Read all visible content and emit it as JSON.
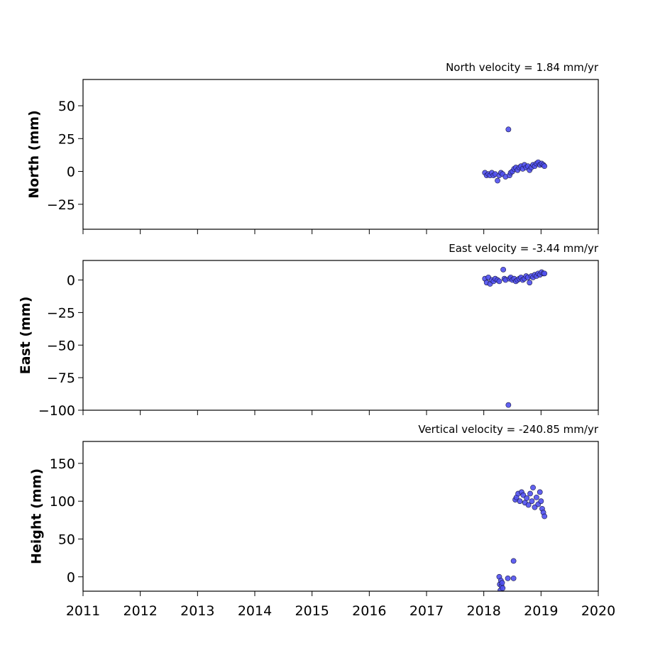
{
  "chart_data": [
    {
      "type": "scatter",
      "title": "North velocity = 1.84 mm/yr",
      "ylabel": "North (mm)",
      "x": [
        2018.02,
        2018.05,
        2018.08,
        2018.11,
        2018.14,
        2018.17,
        2018.2,
        2018.24,
        2018.27,
        2018.3,
        2018.33,
        2018.38,
        2018.43,
        2018.45,
        2018.47,
        2018.5,
        2018.53,
        2018.56,
        2018.59,
        2018.62,
        2018.65,
        2018.68,
        2018.71,
        2018.74,
        2018.77,
        2018.8,
        2018.83,
        2018.86,
        2018.89,
        2018.92,
        2018.95,
        2018.98,
        2019.01,
        2019.04,
        2019.06
      ],
      "values": [
        -1,
        -3,
        -2,
        -3,
        -1,
        -3,
        -2,
        -7,
        -3,
        -1,
        -2,
        -4,
        32,
        -3,
        -1,
        0,
        2,
        3,
        1,
        3,
        4,
        2,
        5,
        3,
        4,
        1,
        3,
        5,
        4,
        6,
        7,
        5,
        6,
        5,
        4
      ],
      "color": "#5050f0",
      "xlim": [
        2011,
        2020
      ],
      "xticks": [
        2011,
        2012,
        2013,
        2014,
        2015,
        2016,
        2017,
        2018,
        2019,
        2020
      ],
      "ylim": [
        -44,
        70
      ],
      "yticks": [
        {
          "value": -25,
          "label": "−25"
        },
        0,
        25,
        50
      ]
    },
    {
      "type": "scatter",
      "title": "East velocity = -3.44 mm/yr",
      "ylabel": "East (mm)",
      "x": [
        2018.02,
        2018.05,
        2018.08,
        2018.11,
        2018.14,
        2018.17,
        2018.2,
        2018.24,
        2018.27,
        2018.34,
        2018.36,
        2018.38,
        2018.43,
        2018.45,
        2018.47,
        2018.5,
        2018.53,
        2018.56,
        2018.59,
        2018.62,
        2018.65,
        2018.68,
        2018.71,
        2018.74,
        2018.77,
        2018.8,
        2018.83,
        2018.86,
        2018.89,
        2018.92,
        2018.95,
        2018.98,
        2019.01,
        2019.04,
        2019.06
      ],
      "values": [
        1,
        -2,
        2,
        -3,
        0,
        -1,
        1,
        0,
        -1,
        8,
        1,
        0,
        -96,
        1,
        2,
        0,
        1,
        -1,
        0,
        1,
        2,
        0,
        1,
        3,
        2,
        -2,
        3,
        2,
        4,
        3,
        5,
        4,
        6,
        5,
        5
      ],
      "color": "#5050f0",
      "xlim": [
        2011,
        2020
      ],
      "xticks": [
        2011,
        2012,
        2013,
        2014,
        2015,
        2016,
        2017,
        2018,
        2019,
        2020
      ],
      "ylim": [
        -100,
        15
      ],
      "yticks": [
        {
          "value": -100,
          "label": "−100"
        },
        {
          "value": -75,
          "label": "−75"
        },
        {
          "value": -50,
          "label": "−50"
        },
        {
          "value": -25,
          "label": "−25"
        },
        0
      ]
    },
    {
      "type": "scatter",
      "title": "Vertical velocity = -240.85 mm/yr",
      "ylabel": "Height (mm)",
      "x": [
        2018.27,
        2018.28,
        2018.29,
        2018.3,
        2018.31,
        2018.32,
        2018.33,
        2018.42,
        2018.52,
        2018.52,
        2018.55,
        2018.57,
        2018.6,
        2018.63,
        2018.66,
        2018.69,
        2018.72,
        2018.75,
        2018.78,
        2018.81,
        2018.84,
        2018.86,
        2018.89,
        2018.92,
        2018.95,
        2018.98,
        2019.0,
        2019.02,
        2019.04,
        2019.06
      ],
      "values": [
        0,
        -10,
        -18,
        -5,
        -12,
        -8,
        -15,
        -2,
        -2,
        21,
        102,
        105,
        110,
        100,
        112,
        108,
        98,
        104,
        95,
        110,
        100,
        118,
        92,
        105,
        96,
        112,
        100,
        90,
        85,
        80
      ],
      "color": "#5050f0",
      "xlim": [
        2011,
        2020
      ],
      "xticks": [
        2011,
        2012,
        2013,
        2014,
        2015,
        2016,
        2017,
        2018,
        2019,
        2020
      ],
      "ylim": [
        -19,
        179
      ],
      "yticks": [
        0,
        50,
        100,
        150
      ]
    }
  ]
}
